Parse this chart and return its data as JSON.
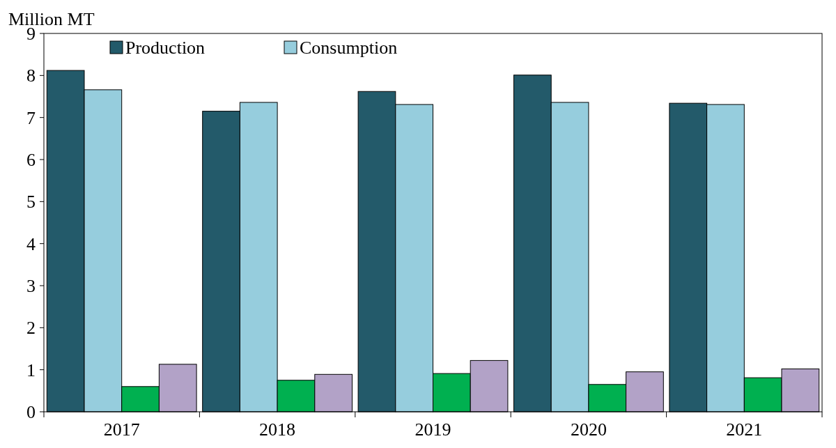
{
  "chart_data": {
    "type": "bar",
    "ylabel": "Million MT",
    "categories": [
      "2017",
      "2018",
      "2019",
      "2020",
      "2021"
    ],
    "series": [
      {
        "name": "Production",
        "color": "#235a6a",
        "values": [
          8.12,
          7.15,
          7.62,
          8.01,
          7.34
        ]
      },
      {
        "name": "Consumption",
        "color": "#96cddd",
        "values": [
          7.66,
          7.36,
          7.31,
          7.36,
          7.31
        ]
      },
      {
        "color": "#00b050",
        "values": [
          0.6,
          0.75,
          0.91,
          0.65,
          0.81
        ]
      },
      {
        "color": "#b2a2c7",
        "values": [
          1.13,
          0.89,
          1.22,
          0.95,
          1.02
        ]
      }
    ],
    "ylim": [
      0,
      9
    ],
    "yticks": [
      0,
      1,
      2,
      3,
      4,
      5,
      6,
      7,
      8,
      9
    ],
    "legend": "top left",
    "grid": false
  }
}
